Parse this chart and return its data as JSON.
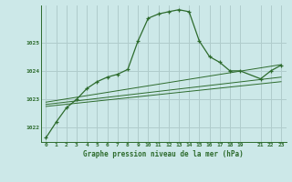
{
  "background_color": "#cce8e8",
  "grid_color": "#b0cccc",
  "line_color": "#2d6b2d",
  "title": "Graphe pression niveau de la mer (hPa)",
  "xlim": [
    -0.5,
    23.5
  ],
  "ylim": [
    1021.5,
    1026.3
  ],
  "yticks": [
    1022,
    1023,
    1024,
    1025
  ],
  "xticks": [
    0,
    1,
    2,
    3,
    4,
    5,
    6,
    7,
    8,
    9,
    10,
    11,
    12,
    13,
    14,
    15,
    16,
    17,
    18,
    19,
    21,
    22,
    23
  ],
  "main_x": [
    0,
    1,
    2,
    3,
    4,
    5,
    6,
    7,
    8,
    9,
    10,
    11,
    12,
    13,
    14,
    15,
    16,
    17,
    18,
    19,
    21,
    22,
    23
  ],
  "main_y": [
    1021.65,
    1022.2,
    1022.7,
    1023.0,
    1023.38,
    1023.62,
    1023.78,
    1023.88,
    1024.05,
    1025.05,
    1025.85,
    1026.0,
    1026.08,
    1026.15,
    1026.08,
    1025.05,
    1024.5,
    1024.3,
    1024.0,
    1024.0,
    1023.72,
    1024.0,
    1024.2
  ],
  "line2_x": [
    0,
    23
  ],
  "line2_y": [
    1022.75,
    1023.62
  ],
  "line3_x": [
    0,
    23
  ],
  "line3_y": [
    1022.82,
    1023.78
  ],
  "line4_x": [
    0,
    23
  ],
  "line4_y": [
    1022.9,
    1024.22
  ]
}
